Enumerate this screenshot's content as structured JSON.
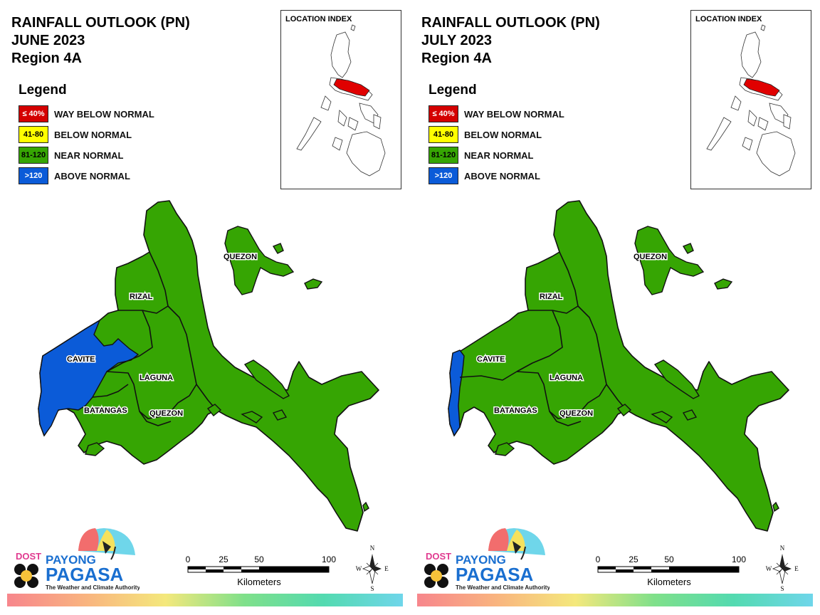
{
  "colors": {
    "way_below": "#d40000",
    "below": "#ffff00",
    "near": "#36a503",
    "above": "#0b5bd8",
    "locator_fill": "#e00000"
  },
  "legend": {
    "title": "Legend",
    "items": [
      {
        "range": "≤ 40%",
        "label": "WAY BELOW NORMAL",
        "category": "way_below"
      },
      {
        "range": "41-80",
        "label": "BELOW NORMAL",
        "category": "below"
      },
      {
        "range": "81-120",
        "label": "NEAR NORMAL",
        "category": "near"
      },
      {
        "range": ">120",
        "label": "ABOVE NORMAL",
        "category": "above"
      }
    ]
  },
  "location_index_title": "LOCATION INDEX",
  "scale": {
    "ticks": [
      "0",
      "25",
      "50",
      "100"
    ],
    "unit": "Kilometers"
  },
  "compass": {
    "n": "N",
    "s": "S",
    "e": "E",
    "w": "W"
  },
  "logo": {
    "dost": "DOST",
    "payong": "PAYONG",
    "pagasa": "PAGASA",
    "tagline": "The Weather and Climate Authority"
  },
  "maps": [
    {
      "title_line1": "RAINFALL OUTLOOK (PN)",
      "title_line2": "JUNE 2023",
      "title_line3": "Region 4A",
      "labels": {
        "quezon_north": "QUEZON",
        "rizal": "RIZAL",
        "cavite": "CAVITE",
        "laguna": "LAGUNA",
        "batangas": "BATANGAS",
        "quezon_south": "QUEZON"
      },
      "cavite_category": "above",
      "note": "Most of Cavite and western Batangas are Above Normal; the rest is Near Normal"
    },
    {
      "title_line1": "RAINFALL OUTLOOK (PN)",
      "title_line2": "JULY 2023",
      "title_line3": "Region 4A",
      "labels": {
        "quezon_north": "QUEZON",
        "rizal": "RIZAL",
        "cavite": "CAVITE",
        "laguna": "LAGUNA",
        "batangas": "BATANGAS",
        "quezon_south": "QUEZON"
      },
      "cavite_category": "near",
      "note": "Only a narrow western coastal strip is Above Normal; the rest is Near Normal"
    }
  ]
}
